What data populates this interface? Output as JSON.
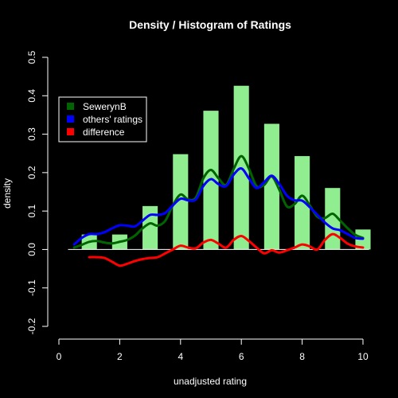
{
  "chart_data": {
    "type": "bar",
    "title": "Density / Histogram of Ratings",
    "xlabel": "unadjusted rating",
    "ylabel": "density",
    "xlim": [
      0,
      10
    ],
    "ylim": [
      -0.2,
      0.5
    ],
    "x_ticks": [
      "0",
      "2",
      "4",
      "6",
      "8",
      "10"
    ],
    "y_ticks": [
      "-0.2",
      "-0.1",
      "0.0",
      "0.1",
      "0.2",
      "0.3",
      "0.4",
      "0.5"
    ],
    "x_tick_values": [
      0,
      2,
      4,
      6,
      8,
      10
    ],
    "y_tick_values": [
      -0.2,
      -0.1,
      0.0,
      0.1,
      0.2,
      0.3,
      0.4,
      0.5
    ],
    "histogram": {
      "color": "#90ee90",
      "bars": [
        {
          "x": 1,
          "value": 0.039
        },
        {
          "x": 2,
          "value": 0.039
        },
        {
          "x": 3,
          "value": 0.113
        },
        {
          "x": 4,
          "value": 0.248
        },
        {
          "x": 5,
          "value": 0.361
        },
        {
          "x": 6,
          "value": 0.426
        },
        {
          "x": 7,
          "value": 0.327
        },
        {
          "x": 8,
          "value": 0.243
        },
        {
          "x": 9,
          "value": 0.16
        },
        {
          "x": 10,
          "value": 0.052
        }
      ]
    },
    "series": [
      {
        "name": "SewerynB",
        "color": "#006400",
        "x": [
          0.5,
          0.75,
          1.0,
          1.25,
          1.5,
          1.75,
          2.0,
          2.25,
          2.5,
          2.75,
          3.0,
          3.25,
          3.5,
          3.75,
          4.0,
          4.25,
          4.5,
          4.75,
          5.0,
          5.25,
          5.5,
          5.75,
          6.0,
          6.25,
          6.5,
          6.75,
          7.0,
          7.25,
          7.5,
          7.75,
          8.0,
          8.25,
          8.5,
          8.75,
          9.0,
          9.25,
          9.5,
          9.75,
          10.0
        ],
        "values": [
          0.005,
          0.012,
          0.02,
          0.022,
          0.018,
          0.016,
          0.02,
          0.025,
          0.036,
          0.055,
          0.068,
          0.062,
          0.075,
          0.115,
          0.143,
          0.13,
          0.135,
          0.185,
          0.207,
          0.185,
          0.168,
          0.21,
          0.243,
          0.21,
          0.165,
          0.168,
          0.19,
          0.155,
          0.112,
          0.118,
          0.14,
          0.115,
          0.085,
          0.082,
          0.093,
          0.075,
          0.055,
          0.038,
          0.03
        ]
      },
      {
        "name": "others' ratings",
        "color": "#0000ff",
        "x": [
          0.5,
          0.75,
          1.0,
          1.25,
          1.5,
          1.75,
          2.0,
          2.25,
          2.5,
          2.75,
          3.0,
          3.25,
          3.5,
          3.75,
          4.0,
          4.25,
          4.5,
          4.75,
          5.0,
          5.25,
          5.5,
          5.75,
          6.0,
          6.25,
          6.5,
          6.75,
          7.0,
          7.25,
          7.5,
          7.75,
          8.0,
          8.25,
          8.5,
          8.75,
          9.0,
          9.25,
          9.5,
          9.75,
          10.0
        ],
        "values": [
          0.013,
          0.03,
          0.04,
          0.04,
          0.045,
          0.055,
          0.063,
          0.062,
          0.06,
          0.075,
          0.09,
          0.09,
          0.095,
          0.115,
          0.132,
          0.128,
          0.13,
          0.165,
          0.183,
          0.17,
          0.165,
          0.195,
          0.211,
          0.185,
          0.16,
          0.175,
          0.192,
          0.17,
          0.14,
          0.128,
          0.127,
          0.11,
          0.09,
          0.07,
          0.055,
          0.05,
          0.04,
          0.03,
          0.028
        ]
      },
      {
        "name": "difference",
        "color": "#ff0000",
        "x": [
          1.0,
          1.25,
          1.5,
          1.75,
          2.0,
          2.25,
          2.5,
          2.75,
          3.0,
          3.25,
          3.5,
          3.75,
          4.0,
          4.25,
          4.5,
          4.75,
          5.0,
          5.25,
          5.5,
          5.75,
          6.0,
          6.25,
          6.5,
          6.75,
          7.0,
          7.25,
          7.5,
          7.75,
          8.0,
          8.25,
          8.5,
          8.75,
          9.0,
          9.25,
          9.5,
          9.75,
          10.0
        ],
        "values": [
          -0.02,
          -0.02,
          -0.022,
          -0.032,
          -0.042,
          -0.037,
          -0.03,
          -0.025,
          -0.022,
          -0.02,
          -0.01,
          0.0,
          0.01,
          0.005,
          0.003,
          0.018,
          0.025,
          0.015,
          0.005,
          0.025,
          0.035,
          0.022,
          0.005,
          -0.01,
          -0.002,
          -0.008,
          -0.002,
          0.005,
          0.013,
          0.008,
          0.0,
          0.025,
          0.04,
          0.03,
          0.015,
          0.008,
          0.005
        ]
      }
    ],
    "legend": {
      "position": "top-left",
      "items": [
        {
          "label": "SewerynB",
          "color": "#006400"
        },
        {
          "label": "others' ratings",
          "color": "#0000ff"
        },
        {
          "label": "difference",
          "color": "#ff0000"
        }
      ]
    },
    "zero_line": true
  }
}
